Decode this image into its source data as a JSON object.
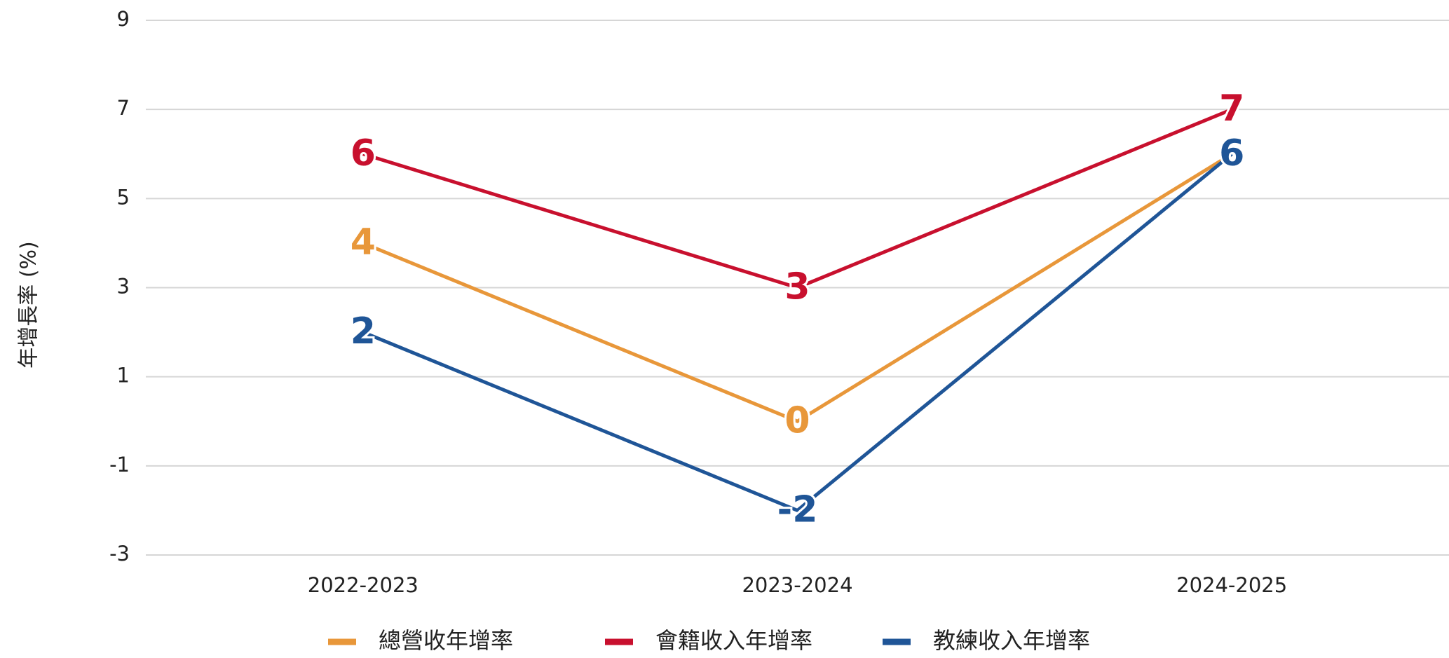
{
  "chart_data": {
    "type": "line",
    "y_label": "年增長率 (%)",
    "categories": [
      "2022-2023",
      "2023-2024",
      "2024-2025"
    ],
    "series": [
      {
        "name": "總營收年增率",
        "color": "#e8973a",
        "values": [
          4,
          0,
          6
        ]
      },
      {
        "name": "會籍收入年增率",
        "color": "#c8102e",
        "values": [
          6,
          3,
          7
        ]
      },
      {
        "name": "教練收入年增率",
        "color": "#1f5597",
        "values": [
          2,
          -2,
          6
        ]
      }
    ],
    "ylim": [
      -3,
      9
    ],
    "yticks": [
      -3,
      -1,
      1,
      3,
      5,
      7,
      9
    ],
    "grid": true,
    "legend": "bottom"
  }
}
